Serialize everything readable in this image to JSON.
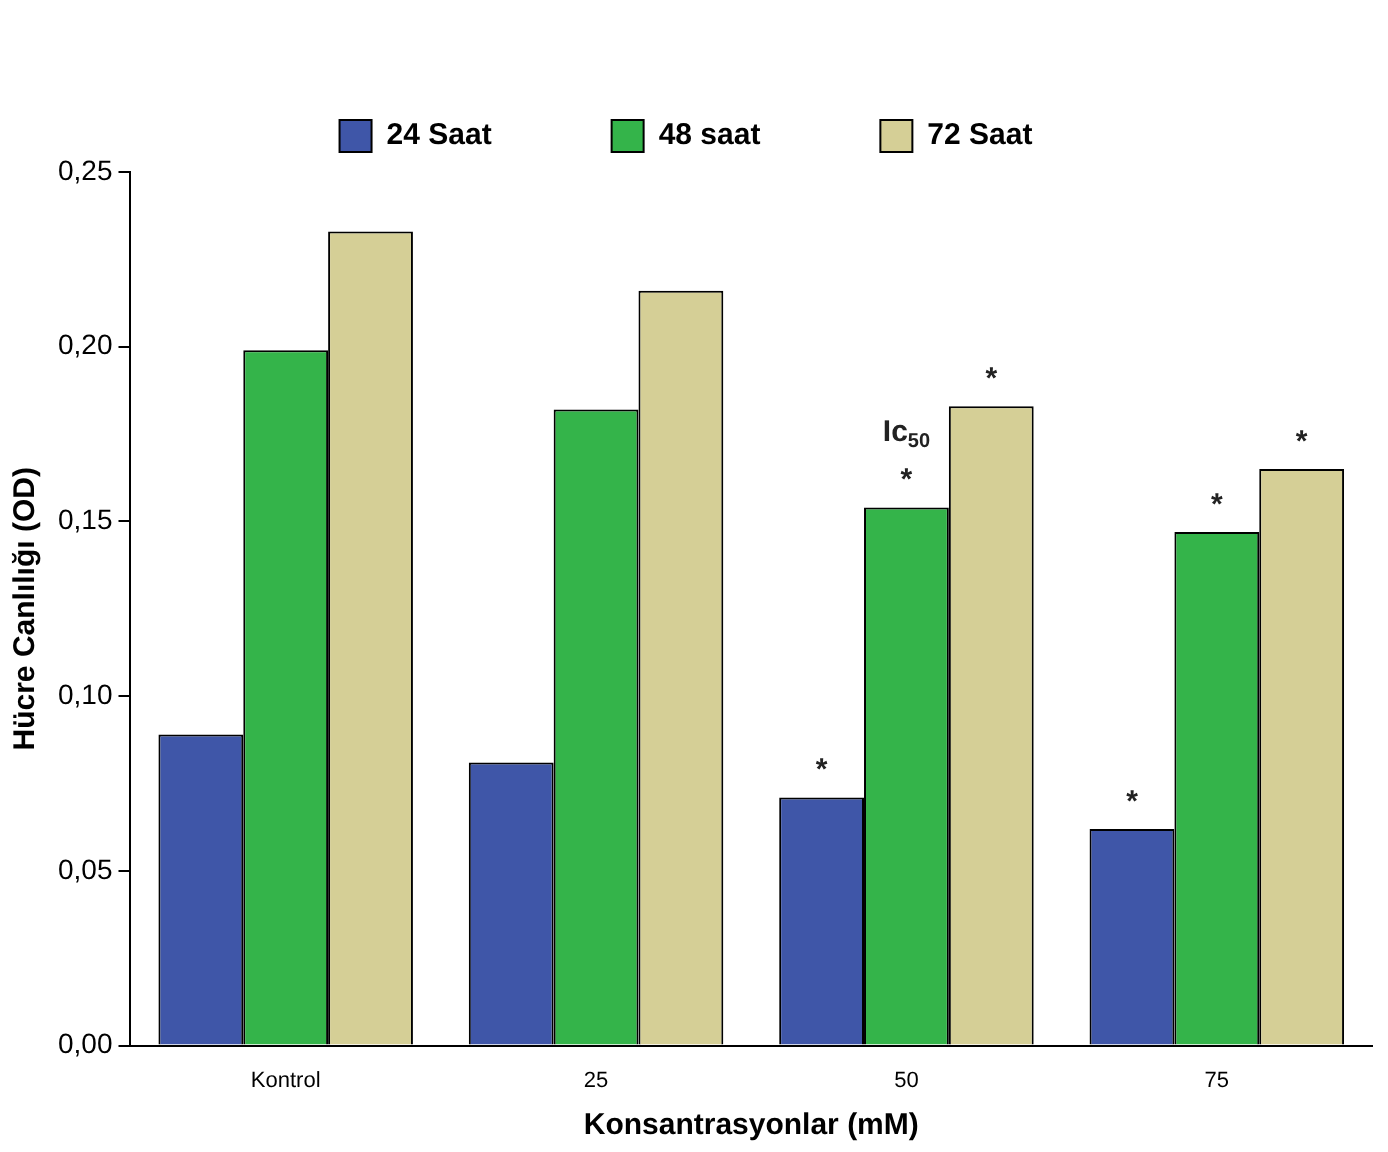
{
  "chart_data": {
    "type": "bar",
    "xlabel": "Konsantrasyonlar (mM)",
    "ylabel": "Hücre Canlılığı (OD)",
    "categories": [
      "Kontrol",
      "25",
      "50",
      "75"
    ],
    "series": [
      {
        "name": "24 Saat",
        "color": "#3f56a8",
        "values": [
          0.089,
          0.081,
          0.071,
          0.062
        ]
      },
      {
        "name": "48 saat",
        "color": "#34b44a",
        "values": [
          0.199,
          0.182,
          0.154,
          0.147
        ]
      },
      {
        "name": "72 Saat",
        "color": "#d5cf96",
        "values": [
          0.233,
          0.216,
          0.183,
          0.165
        ]
      }
    ],
    "ylim": [
      0,
      0.25
    ],
    "yticks": [
      {
        "value": 0,
        "label": "0,00"
      },
      {
        "value": 0.05,
        "label": "0,05"
      },
      {
        "value": 0.1,
        "label": "0,10"
      },
      {
        "value": 0.15,
        "label": "0,15"
      },
      {
        "value": 0.2,
        "label": "0,20"
      },
      {
        "value": 0.25,
        "label": "0,25"
      }
    ],
    "grid": false,
    "legend": "top",
    "annotations": [
      "*",
      {
        "text": "*",
        "x": "50",
        "y": 0.154
      },
      {
        "text": "Ic$_{50}$",
        "x": "50",
        "y": 0.154
      },
      "*",
      "*",
      {
        "text": "*",
        "x": "75",
        "y": 0.147
      },
      "*"
    ]
  }
}
